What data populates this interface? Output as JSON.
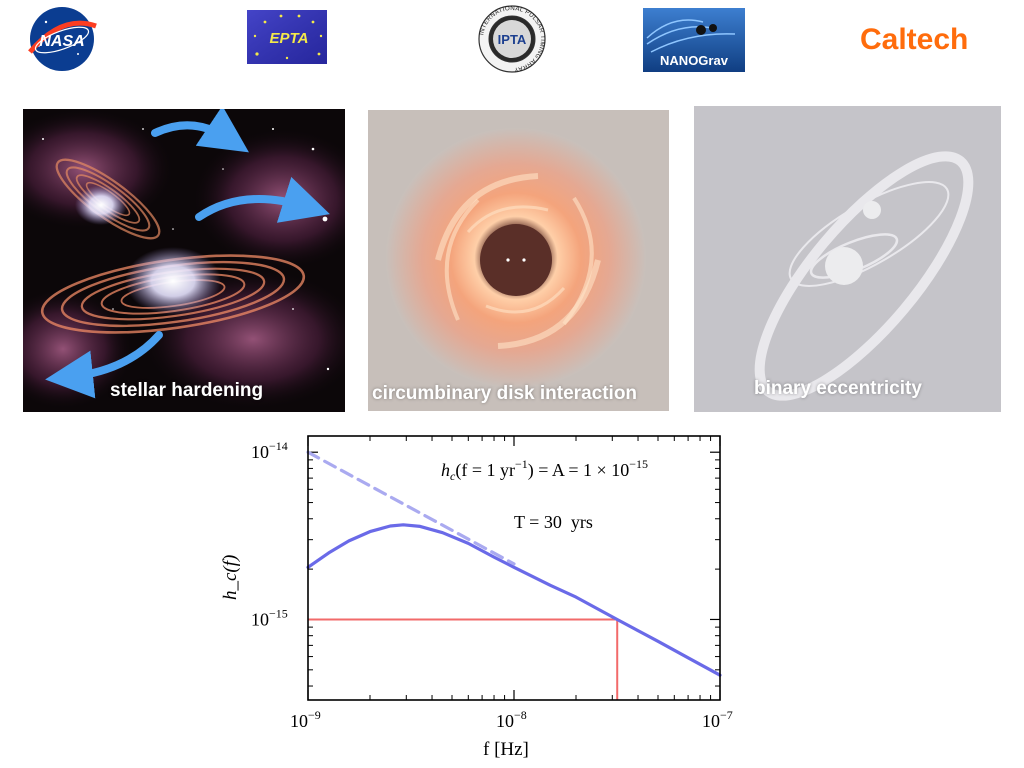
{
  "logos": [
    {
      "name": "nasa-logo",
      "text": "NASA"
    },
    {
      "name": "epta-logo",
      "text": "EPTA"
    },
    {
      "name": "ipta-logo",
      "text": "IPTA",
      "ring_text": "INTERNATIONAL PULSAR TIMING ARRAY"
    },
    {
      "name": "nanograv-logo",
      "text": "NANOGrav"
    },
    {
      "name": "caltech-logo",
      "text": "Caltech"
    }
  ],
  "panels": [
    {
      "name": "stellar-hardening-panel",
      "caption": "stellar hardening"
    },
    {
      "name": "circumbinary-disk-panel",
      "caption": "circumbinary disk interaction"
    },
    {
      "name": "binary-eccentricity-panel",
      "caption": "binary eccentricity"
    }
  ],
  "colors": {
    "nasa_blue": "#0b3d91",
    "nasa_red": "#fc3d21",
    "epta_blue": "#2f2fb0",
    "epta_yellow": "#f4e94a",
    "nanograv_blue": "#1c5aa6",
    "caltech_orange": "#ff6c0c",
    "curve_blue": "#6a6ae8",
    "dashed_blue": "#aaaaf0",
    "marker_red": "#f26a6a"
  },
  "chart_data": {
    "type": "line",
    "xlabel": "f [Hz]",
    "ylabel": "h_c(f)",
    "xscale": "log",
    "yscale": "log",
    "xlim": [
      1e-09,
      1e-07
    ],
    "ylim": [
      3.3e-16,
      1.25e-14
    ],
    "x_ticks": [
      {
        "value": 1e-09,
        "base": "10",
        "exp": "−9"
      },
      {
        "value": 1e-08,
        "base": "10",
        "exp": "−8"
      },
      {
        "value": 1e-07,
        "base": "10",
        "exp": "−7"
      }
    ],
    "y_ticks": [
      {
        "value": 1e-15,
        "base": "10",
        "exp": "−15"
      },
      {
        "value": 1e-14,
        "base": "10",
        "exp": "−14"
      }
    ],
    "annotation_main": {
      "lhs": "h",
      "sub": "c",
      "mid": "(f = 1 yr",
      "sup1": "−1",
      "rhs": ") = A = 1 × 10",
      "sup2": "−15"
    },
    "annotation_T": "T = 30  yrs",
    "series": [
      {
        "style": "solid",
        "x": [
          1e-09,
          1.26e-09,
          1.58e-09,
          2e-09,
          2.51e-09,
          2.9e-09,
          3.5e-09,
          4.5e-09,
          6e-09,
          8e-09,
          1e-08,
          1.5e-08,
          2e-08,
          3.17e-08,
          5e-08,
          7e-08,
          1e-07
        ],
        "y": [
          2.05e-15,
          2.5e-15,
          2.95e-15,
          3.35e-15,
          3.62e-15,
          3.68e-15,
          3.6e-15,
          3.3e-15,
          2.85e-15,
          2.36e-15,
          2.05e-15,
          1.6e-15,
          1.36e-15,
          1e-15,
          7.4e-16,
          5.9e-16,
          4.64e-16
        ]
      },
      {
        "style": "dashed",
        "x": [
          1e-09,
          1e-08
        ],
        "y": [
          1e-14,
          2.15e-15
        ]
      }
    ],
    "reference_point": {
      "x": 3.17e-08,
      "y": 1e-15
    }
  }
}
